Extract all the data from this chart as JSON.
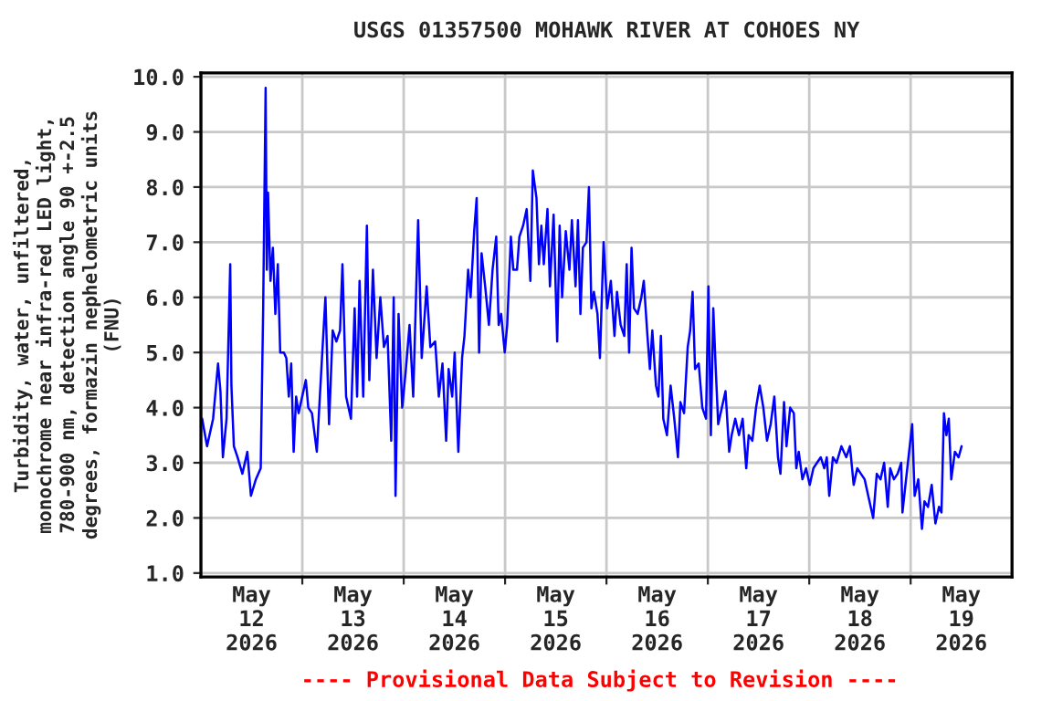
{
  "chart_data": {
    "type": "line",
    "title": "USGS 01357500 MOHAWK RIVER AT COHOES NY",
    "ylabel": "Turbidity, water, unfiltered,\nmonochrome near infra-red LED light,\n780-900 nm, detection angle 90 +-2.5\ndegrees, formazin nephelometric units\n(FNU)",
    "annotations": [
      "---- Provisional Data Subject to Revision ----"
    ],
    "xlim": [
      "2026-05-12T00:00",
      "2026-05-20T00:00"
    ],
    "xticks": [
      {
        "value": "2026-05-12T12:00",
        "label": "May\n12\n2026"
      },
      {
        "value": "2026-05-13T00:00",
        "label": null
      },
      {
        "value": "2026-05-13T12:00",
        "label": "May\n13\n2026"
      },
      {
        "value": "2026-05-14T00:00",
        "label": null
      },
      {
        "value": "2026-05-14T12:00",
        "label": "May\n14\n2026"
      },
      {
        "value": "2026-05-15T00:00",
        "label": null
      },
      {
        "value": "2026-05-15T12:00",
        "label": "May\n15\n2026"
      },
      {
        "value": "2026-05-16T00:00",
        "label": null
      },
      {
        "value": "2026-05-16T12:00",
        "label": "May\n16\n2026"
      },
      {
        "value": "2026-05-17T00:00",
        "label": null
      },
      {
        "value": "2026-05-17T12:00",
        "label": "May\n17\n2026"
      },
      {
        "value": "2026-05-18T00:00",
        "label": null
      },
      {
        "value": "2026-05-18T12:00",
        "label": "May\n18\n2026"
      },
      {
        "value": "2026-05-19T00:00",
        "label": null
      },
      {
        "value": "2026-05-19T12:00",
        "label": "May\n19\n2026"
      }
    ],
    "ylim": [
      0.93,
      10.07
    ],
    "yticks": [
      {
        "value": 1,
        "label": "1.0"
      },
      {
        "value": 2,
        "label": "2.0"
      },
      {
        "value": 3,
        "label": "3.0"
      },
      {
        "value": 4,
        "label": "4.0"
      },
      {
        "value": 5,
        "label": "5.0"
      },
      {
        "value": 6,
        "label": "6.0"
      },
      {
        "value": 7,
        "label": "7.0"
      },
      {
        "value": 8,
        "label": "8.0"
      },
      {
        "value": 9,
        "label": "9.0"
      },
      {
        "value": 10,
        "label": "10.0"
      }
    ],
    "grid": true,
    "legend": false,
    "marker": "none",
    "line_style": "solid",
    "series": [
      {
        "color": "#0000ff",
        "x": [
          "2026-05-12T00:17",
          "2026-05-12T01:27",
          "2026-05-12T02:53",
          "2026-05-12T04:03",
          "2026-05-12T04:37",
          "2026-05-12T05:12",
          "2026-05-12T06:04",
          "2026-05-12T06:56",
          "2026-05-12T07:13",
          "2026-05-12T07:48",
          "2026-05-12T08:40",
          "2026-05-12T09:49",
          "2026-05-12T10:59",
          "2026-05-12T11:50",
          "2026-05-12T13:00",
          "2026-05-12T14:09",
          "2026-05-12T14:44",
          "2026-05-12T15:19",
          "2026-05-12T15:36",
          "2026-05-12T15:53",
          "2026-05-12T16:28",
          "2026-05-12T17:02",
          "2026-05-12T17:37",
          "2026-05-12T18:12",
          "2026-05-12T18:46",
          "2026-05-12T19:38",
          "2026-05-12T20:13",
          "2026-05-12T20:48",
          "2026-05-12T21:22",
          "2026-05-12T21:57",
          "2026-05-12T22:32",
          "2026-05-12T23:07",
          "2026-05-12T23:58",
          "2026-05-13T00:50",
          "2026-05-13T01:25",
          "2026-05-13T02:17",
          "2026-05-13T03:26",
          "2026-05-13T04:35",
          "2026-05-13T05:28",
          "2026-05-13T06:20",
          "2026-05-13T07:11",
          "2026-05-13T08:04",
          "2026-05-13T08:56",
          "2026-05-13T09:30",
          "2026-05-13T10:22",
          "2026-05-13T11:31",
          "2026-05-13T12:23",
          "2026-05-13T12:58",
          "2026-05-13T13:33",
          "2026-05-13T14:25",
          "2026-05-13T15:17",
          "2026-05-13T15:52",
          "2026-05-13T16:43",
          "2026-05-13T17:35",
          "2026-05-13T18:28",
          "2026-05-13T19:19",
          "2026-05-13T20:11",
          "2026-05-13T21:03",
          "2026-05-13T21:38",
          "2026-05-13T22:04",
          "2026-05-13T22:47",
          "2026-05-13T23:39",
          "2026-05-14T00:31",
          "2026-05-14T01:23",
          "2026-05-14T02:15",
          "2026-05-14T03:25",
          "2026-05-14T04:16",
          "2026-05-14T05:26",
          "2026-05-14T06:18",
          "2026-05-14T07:27",
          "2026-05-14T08:19",
          "2026-05-14T09:11",
          "2026-05-14T10:03",
          "2026-05-14T10:38",
          "2026-05-14T11:29",
          "2026-05-14T12:04",
          "2026-05-14T12:56",
          "2026-05-14T13:49",
          "2026-05-14T14:23",
          "2026-05-14T15:15",
          "2026-05-14T15:50",
          "2026-05-14T16:41",
          "2026-05-14T17:16",
          "2026-05-14T17:51",
          "2026-05-14T18:26",
          "2026-05-14T19:17",
          "2026-05-14T20:10",
          "2026-05-14T21:02",
          "2026-05-14T21:54",
          "2026-05-14T22:29",
          "2026-05-14T23:04",
          "2026-05-14T23:55",
          "2026-05-15T00:30",
          "2026-05-15T01:22",
          "2026-05-15T01:57",
          "2026-05-15T02:49",
          "2026-05-15T03:23",
          "2026-05-15T04:16",
          "2026-05-15T05:07",
          "2026-05-15T05:59",
          "2026-05-15T06:34",
          "2026-05-15T07:26",
          "2026-05-15T08:01",
          "2026-05-15T08:35",
          "2026-05-15T09:10",
          "2026-05-15T10:02",
          "2026-05-15T10:37",
          "2026-05-15T11:29",
          "2026-05-15T12:20",
          "2026-05-15T12:55",
          "2026-05-15T13:30",
          "2026-05-15T14:22",
          "2026-05-15T15:14",
          "2026-05-15T15:49",
          "2026-05-15T16:41",
          "2026-05-15T17:15",
          "2026-05-15T17:50",
          "2026-05-15T18:25",
          "2026-05-15T19:16",
          "2026-05-15T19:51",
          "2026-05-15T20:26",
          "2026-05-15T21:01",
          "2026-05-15T21:52",
          "2026-05-15T22:27",
          "2026-05-15T23:19",
          "2026-05-16T00:10",
          "2026-05-16T01:02",
          "2026-05-16T01:54",
          "2026-05-16T02:29",
          "2026-05-16T03:21",
          "2026-05-16T04:13",
          "2026-05-16T04:47",
          "2026-05-16T05:22",
          "2026-05-16T05:56",
          "2026-05-16T06:31",
          "2026-05-16T07:23",
          "2026-05-16T08:15",
          "2026-05-16T08:50",
          "2026-05-16T09:42",
          "2026-05-16T10:17",
          "2026-05-16T10:51",
          "2026-05-16T11:43",
          "2026-05-16T12:18",
          "2026-05-16T12:53",
          "2026-05-16T13:27",
          "2026-05-16T14:19",
          "2026-05-16T15:11",
          "2026-05-16T16:03",
          "2026-05-16T16:55",
          "2026-05-16T17:30",
          "2026-05-16T18:22",
          "2026-05-16T19:14",
          "2026-05-16T19:49",
          "2026-05-16T20:23",
          "2026-05-16T20:58",
          "2026-05-16T21:50",
          "2026-05-16T22:41",
          "2026-05-16T23:34",
          "2026-05-17T00:08",
          "2026-05-17T00:43",
          "2026-05-17T01:17",
          "2026-05-17T01:52",
          "2026-05-17T02:27",
          "2026-05-17T03:19",
          "2026-05-17T04:11",
          "2026-05-17T05:03",
          "2026-05-17T05:38",
          "2026-05-17T06:29",
          "2026-05-17T07:22",
          "2026-05-17T08:14",
          "2026-05-17T09:05",
          "2026-05-17T09:40",
          "2026-05-17T10:32",
          "2026-05-17T11:24",
          "2026-05-17T12:16",
          "2026-05-17T13:08",
          "2026-05-17T14:00",
          "2026-05-17T14:52",
          "2026-05-17T15:44",
          "2026-05-17T16:36",
          "2026-05-17T17:11",
          "2026-05-17T18:02",
          "2026-05-17T18:37",
          "2026-05-17T19:29",
          "2026-05-17T20:21",
          "2026-05-17T20:56",
          "2026-05-17T21:31",
          "2026-05-17T22:23",
          "2026-05-17T23:14",
          "2026-05-18T00:07",
          "2026-05-18T00:59",
          "2026-05-18T01:50",
          "2026-05-18T02:43",
          "2026-05-18T03:34",
          "2026-05-18T04:09",
          "2026-05-18T04:44",
          "2026-05-18T05:36",
          "2026-05-18T06:28",
          "2026-05-18T07:37",
          "2026-05-18T08:46",
          "2026-05-18T09:38",
          "2026-05-18T10:31",
          "2026-05-18T11:22",
          "2026-05-18T12:14",
          "2026-05-18T13:07",
          "2026-05-18T13:58",
          "2026-05-18T15:08",
          "2026-05-18T15:59",
          "2026-05-18T16:52",
          "2026-05-18T17:44",
          "2026-05-18T18:35",
          "2026-05-18T19:10",
          "2026-05-18T20:02",
          "2026-05-18T20:54",
          "2026-05-18T21:46",
          "2026-05-18T22:04",
          "2026-05-18T22:55",
          "2026-05-19T00:22",
          "2026-05-19T00:57",
          "2026-05-19T01:49",
          "2026-05-19T02:41",
          "2026-05-19T03:16",
          "2026-05-19T04:07",
          "2026-05-19T04:59",
          "2026-05-19T05:52",
          "2026-05-19T06:43",
          "2026-05-19T07:18",
          "2026-05-19T07:53",
          "2026-05-19T08:28",
          "2026-05-19T09:02",
          "2026-05-19T09:37",
          "2026-05-19T10:29",
          "2026-05-19T11:21",
          "2026-05-19T12:04"
        ],
        "values": [
          3.8,
          3.3,
          3.8,
          4.8,
          4.3,
          3.1,
          3.8,
          6.6,
          4.4,
          3.3,
          3.1,
          2.8,
          3.2,
          2.4,
          2.7,
          2.9,
          5.8,
          9.8,
          6.5,
          7.9,
          6.3,
          6.9,
          5.7,
          6.6,
          5.0,
          5.0,
          4.9,
          4.2,
          4.8,
          3.2,
          4.2,
          3.9,
          4.2,
          4.5,
          4.0,
          3.9,
          3.2,
          4.8,
          6.0,
          3.7,
          5.4,
          5.2,
          5.4,
          6.6,
          4.2,
          3.8,
          5.8,
          4.2,
          6.3,
          4.2,
          7.3,
          4.5,
          6.5,
          4.9,
          6.0,
          5.1,
          5.3,
          3.4,
          6.0,
          2.4,
          5.7,
          4.0,
          4.7,
          5.5,
          4.2,
          7.4,
          4.9,
          6.2,
          5.1,
          5.2,
          4.2,
          4.8,
          3.4,
          4.7,
          4.2,
          5.0,
          3.2,
          4.9,
          5.3,
          6.5,
          6.0,
          7.2,
          7.8,
          5.0,
          6.8,
          6.2,
          5.5,
          6.5,
          7.1,
          5.5,
          5.7,
          5.0,
          5.5,
          7.1,
          6.5,
          6.5,
          7.1,
          7.3,
          7.6,
          6.3,
          8.3,
          7.8,
          6.6,
          7.3,
          6.6,
          7.6,
          6.2,
          7.5,
          5.2,
          7.3,
          6.0,
          7.2,
          6.5,
          7.4,
          6.2,
          7.4,
          5.7,
          6.9,
          7.0,
          8.0,
          5.8,
          6.1,
          5.7,
          4.9,
          7.0,
          5.8,
          6.3,
          5.3,
          6.1,
          5.5,
          5.3,
          6.6,
          5.0,
          6.9,
          5.8,
          5.7,
          6.0,
          6.3,
          5.3,
          4.7,
          5.4,
          4.4,
          4.2,
          5.3,
          3.8,
          3.5,
          4.4,
          3.8,
          3.1,
          4.1,
          3.9,
          5.1,
          5.4,
          6.1,
          4.7,
          4.8,
          4.0,
          3.8,
          6.2,
          3.5,
          5.8,
          4.7,
          3.7,
          4.0,
          4.3,
          3.2,
          3.5,
          3.8,
          3.5,
          3.8,
          2.9,
          3.5,
          3.4,
          4.0,
          4.4,
          4.0,
          3.4,
          3.7,
          4.2,
          3.1,
          2.8,
          4.1,
          3.3,
          4.0,
          3.9,
          2.9,
          3.2,
          2.7,
          2.9,
          2.6,
          2.9,
          3.0,
          3.1,
          2.9,
          3.1,
          2.4,
          3.1,
          3.0,
          3.3,
          3.1,
          3.3,
          2.6,
          2.9,
          2.8,
          2.7,
          2.4,
          2.0,
          2.8,
          2.7,
          3.0,
          2.2,
          2.9,
          2.7,
          2.8,
          3.0,
          2.1,
          2.7,
          3.7,
          2.4,
          2.7,
          1.8,
          2.3,
          2.2,
          2.6,
          1.9,
          2.2,
          2.1,
          3.9,
          3.5,
          3.8,
          2.7,
          3.2,
          3.1,
          3.3
        ]
      }
    ]
  }
}
